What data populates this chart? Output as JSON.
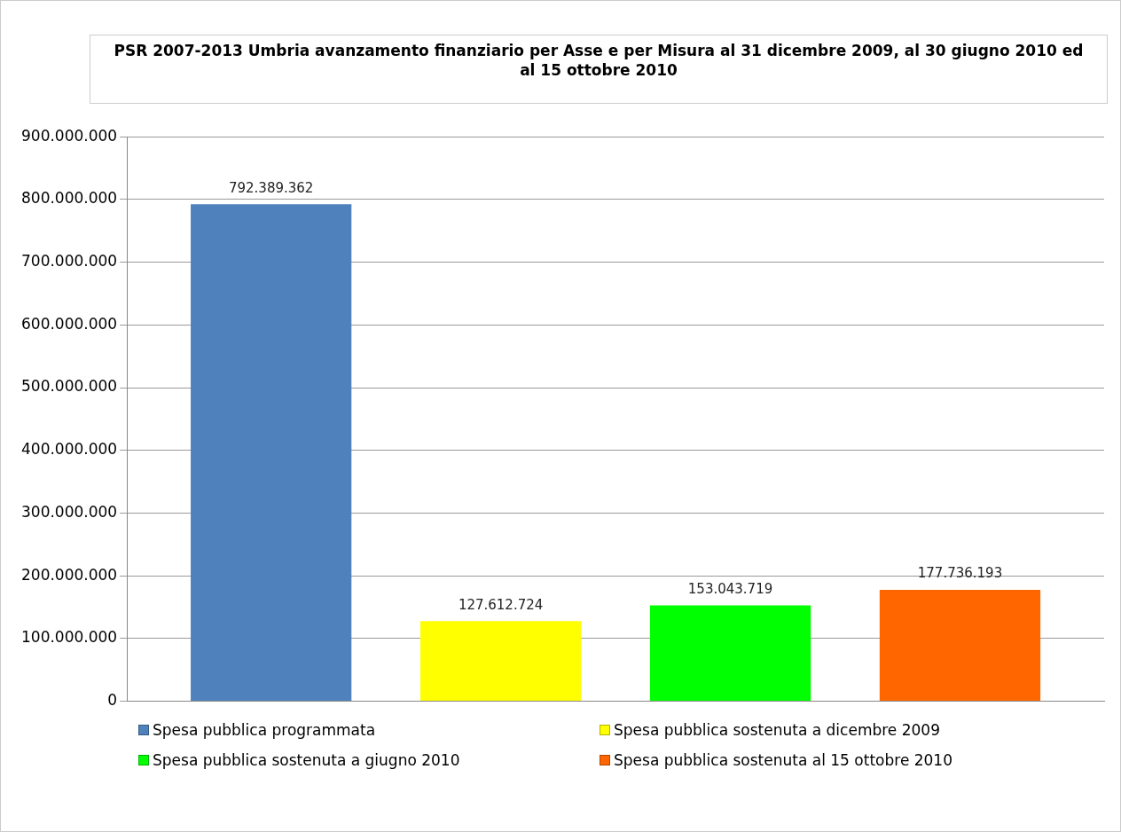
{
  "chart_data": {
    "type": "bar",
    "title": "PSR 2007-2013 Umbria avanzamento finanziario  per Asse e per Misura al 31 dicembre 2009, al 30 giugno 2010 ed al 15 ottobre 2010",
    "categories": [
      null
    ],
    "series": [
      {
        "name": "Spesa pubblica programmata",
        "color": "#4f81bd",
        "values": [
          792389362
        ],
        "value_labels": [
          "792.389.362"
        ]
      },
      {
        "name": "Spesa pubblica sostenuta a dicembre 2009",
        "color": "#ffff00",
        "values": [
          127612724
        ],
        "value_labels": [
          "127.612.724"
        ]
      },
      {
        "name": "Spesa pubblica sostenuta a giugno 2010",
        "color": "#00ff00",
        "values": [
          153043719
        ],
        "value_labels": [
          "153.043.719"
        ]
      },
      {
        "name": "Spesa pubblica sostenuta al 15 ottobre 2010",
        "color": "#ff6600",
        "values": [
          177736193
        ],
        "value_labels": [
          "177.736.193"
        ]
      }
    ],
    "ylim": [
      0,
      900000000
    ],
    "yticks": [
      {
        "value": 0,
        "label": "0"
      },
      {
        "value": 100000000,
        "label": "100.000.000"
      },
      {
        "value": 200000000,
        "label": "200.000.000"
      },
      {
        "value": 300000000,
        "label": "300.000.000"
      },
      {
        "value": 400000000,
        "label": "400.000.000"
      },
      {
        "value": 500000000,
        "label": "500.000.000"
      },
      {
        "value": 600000000,
        "label": "600.000.000"
      },
      {
        "value": 700000000,
        "label": "700.000.000"
      },
      {
        "value": 800000000,
        "label": "800.000.000"
      },
      {
        "value": 900000000,
        "label": "900.000.000"
      }
    ],
    "grid": "y",
    "legend": "bottom"
  }
}
